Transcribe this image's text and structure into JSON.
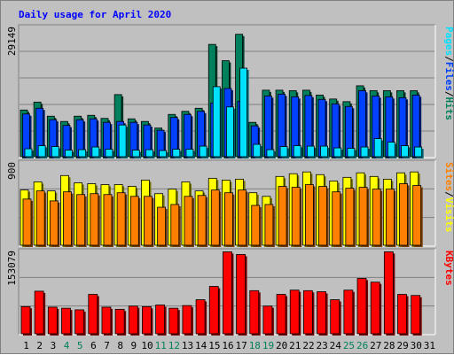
{
  "title": "Daily usage for April 2020",
  "colors": {
    "background": "#c0c0c0",
    "panel": "#c0c0c0",
    "frame": "#808080",
    "hits": "#00805c",
    "files": "#0040ff",
    "pages": "#00e0ff",
    "visits": "#ffff00",
    "sites": "#ff8000",
    "kbytes": "#ff0000",
    "title": "#0000ff",
    "day_normal": "#000000",
    "day_weekend": "#00805c"
  },
  "chart_data": [
    {
      "type": "bar",
      "name": "hits-files-pages",
      "ymax_label": "29149",
      "ylim": [
        0,
        29149
      ],
      "side_labels": [
        "Pages",
        "/",
        "Files",
        "/",
        "Hits"
      ],
      "series": [
        {
          "name": "Hits",
          "color": "#00805c",
          "values": [
            10600,
            12400,
            9200,
            8000,
            9200,
            9400,
            8700,
            14100,
            8600,
            8000,
            6500,
            9600,
            10300,
            11000,
            25500,
            21800,
            27800,
            7800,
            15100,
            15100,
            15000,
            15100,
            14000,
            13100,
            12500,
            16100,
            15000,
            15000,
            15000,
            15000
          ]
        },
        {
          "name": "Files",
          "color": "#0040ff",
          "values": [
            9700,
            11000,
            8400,
            7100,
            8400,
            8600,
            7800,
            8000,
            7800,
            7200,
            6000,
            8900,
            9600,
            10300,
            12200,
            15500,
            12600,
            7000,
            13800,
            14200,
            13600,
            13900,
            13000,
            12000,
            11400,
            15000,
            13800,
            13600,
            13400,
            14000
          ]
        },
        {
          "name": "Pages",
          "color": "#00e0ff",
          "values": [
            1800,
            2500,
            2300,
            1500,
            1600,
            2200,
            1700,
            7200,
            1500,
            1600,
            1400,
            1700,
            1700,
            2400,
            15900,
            11300,
            20100,
            2800,
            1600,
            2300,
            2500,
            2400,
            2400,
            2000,
            1900,
            2200,
            4100,
            3300,
            2500,
            2200
          ]
        }
      ]
    },
    {
      "type": "bar",
      "name": "visits-sites",
      "ymax_label": "900",
      "ylim": [
        0,
        900
      ],
      "side_labels": [
        "Sites",
        "/",
        "Visits"
      ],
      "series": [
        {
          "name": "Visits",
          "color": "#ffff00",
          "values": [
            610,
            700,
            600,
            770,
            690,
            680,
            670,
            670,
            650,
            720,
            570,
            620,
            700,
            600,
            740,
            720,
            730,
            580,
            540,
            760,
            790,
            810,
            780,
            710,
            750,
            800,
            760,
            730,
            800,
            810
          ]
        },
        {
          "name": "Sites",
          "color": "#ff8000",
          "values": [
            510,
            600,
            490,
            590,
            560,
            570,
            560,
            580,
            540,
            540,
            420,
            450,
            540,
            550,
            610,
            580,
            610,
            440,
            450,
            650,
            640,
            670,
            650,
            590,
            630,
            640,
            620,
            620,
            680,
            660
          ]
        }
      ]
    },
    {
      "type": "bar",
      "name": "kbytes",
      "ymax_label": "153079",
      "ylim": [
        0,
        153079
      ],
      "side_labels": [
        "KBytes"
      ],
      "series": [
        {
          "name": "KBytes",
          "color": "#ff0000",
          "values": [
            51000,
            80000,
            50000,
            48000,
            45000,
            74000,
            50000,
            46000,
            52000,
            51000,
            54000,
            48000,
            53000,
            64000,
            89000,
            154000,
            149000,
            81000,
            52000,
            74000,
            82000,
            81000,
            79000,
            64000,
            82000,
            104000,
            97000,
            154000,
            74000,
            72000
          ]
        }
      ]
    }
  ],
  "days": [
    "1",
    "2",
    "3",
    "4",
    "5",
    "6",
    "7",
    "8",
    "9",
    "10",
    "11",
    "12",
    "13",
    "14",
    "15",
    "16",
    "17",
    "18",
    "19",
    "20",
    "21",
    "22",
    "23",
    "24",
    "25",
    "26",
    "27",
    "28",
    "29",
    "30",
    "31"
  ],
  "weekend_days": [
    "4",
    "5",
    "11",
    "12",
    "18",
    "19",
    "25",
    "26"
  ]
}
